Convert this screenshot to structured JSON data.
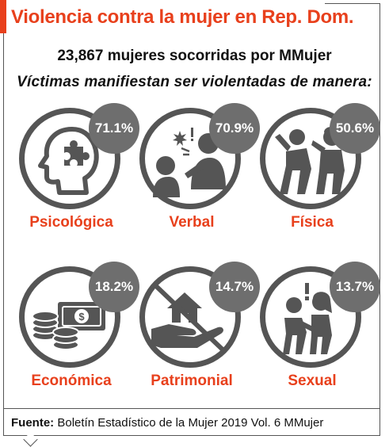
{
  "header": {
    "title": "Violencia contra la mujer en Rep. Dom.",
    "accent_color": "#e8401c"
  },
  "subtitle": "23,867 mujeres socorridas por MMujer",
  "question": "Víctimas manifiestan ser violentadas de manera:",
  "categories": [
    {
      "label": "Psicológica",
      "percent": "71.1%",
      "icon": "head-puzzle-icon"
    },
    {
      "label": "Verbal",
      "percent": "70.9%",
      "icon": "shouting-people-icon"
    },
    {
      "label": "Física",
      "percent": "50.6%",
      "icon": "fighting-people-icon"
    },
    {
      "label": "Económica",
      "percent": "18.2%",
      "icon": "money-coins-icon"
    },
    {
      "label": "Patrimonial",
      "percent": "14.7%",
      "icon": "house-hand-icon"
    },
    {
      "label": "Sexual",
      "percent": "13.7%",
      "icon": "harassment-icon"
    }
  ],
  "footer": {
    "label": "Fuente:",
    "text": "Boletín Estadístico de la Mujer 2019 Vol. 6 MMujer"
  }
}
